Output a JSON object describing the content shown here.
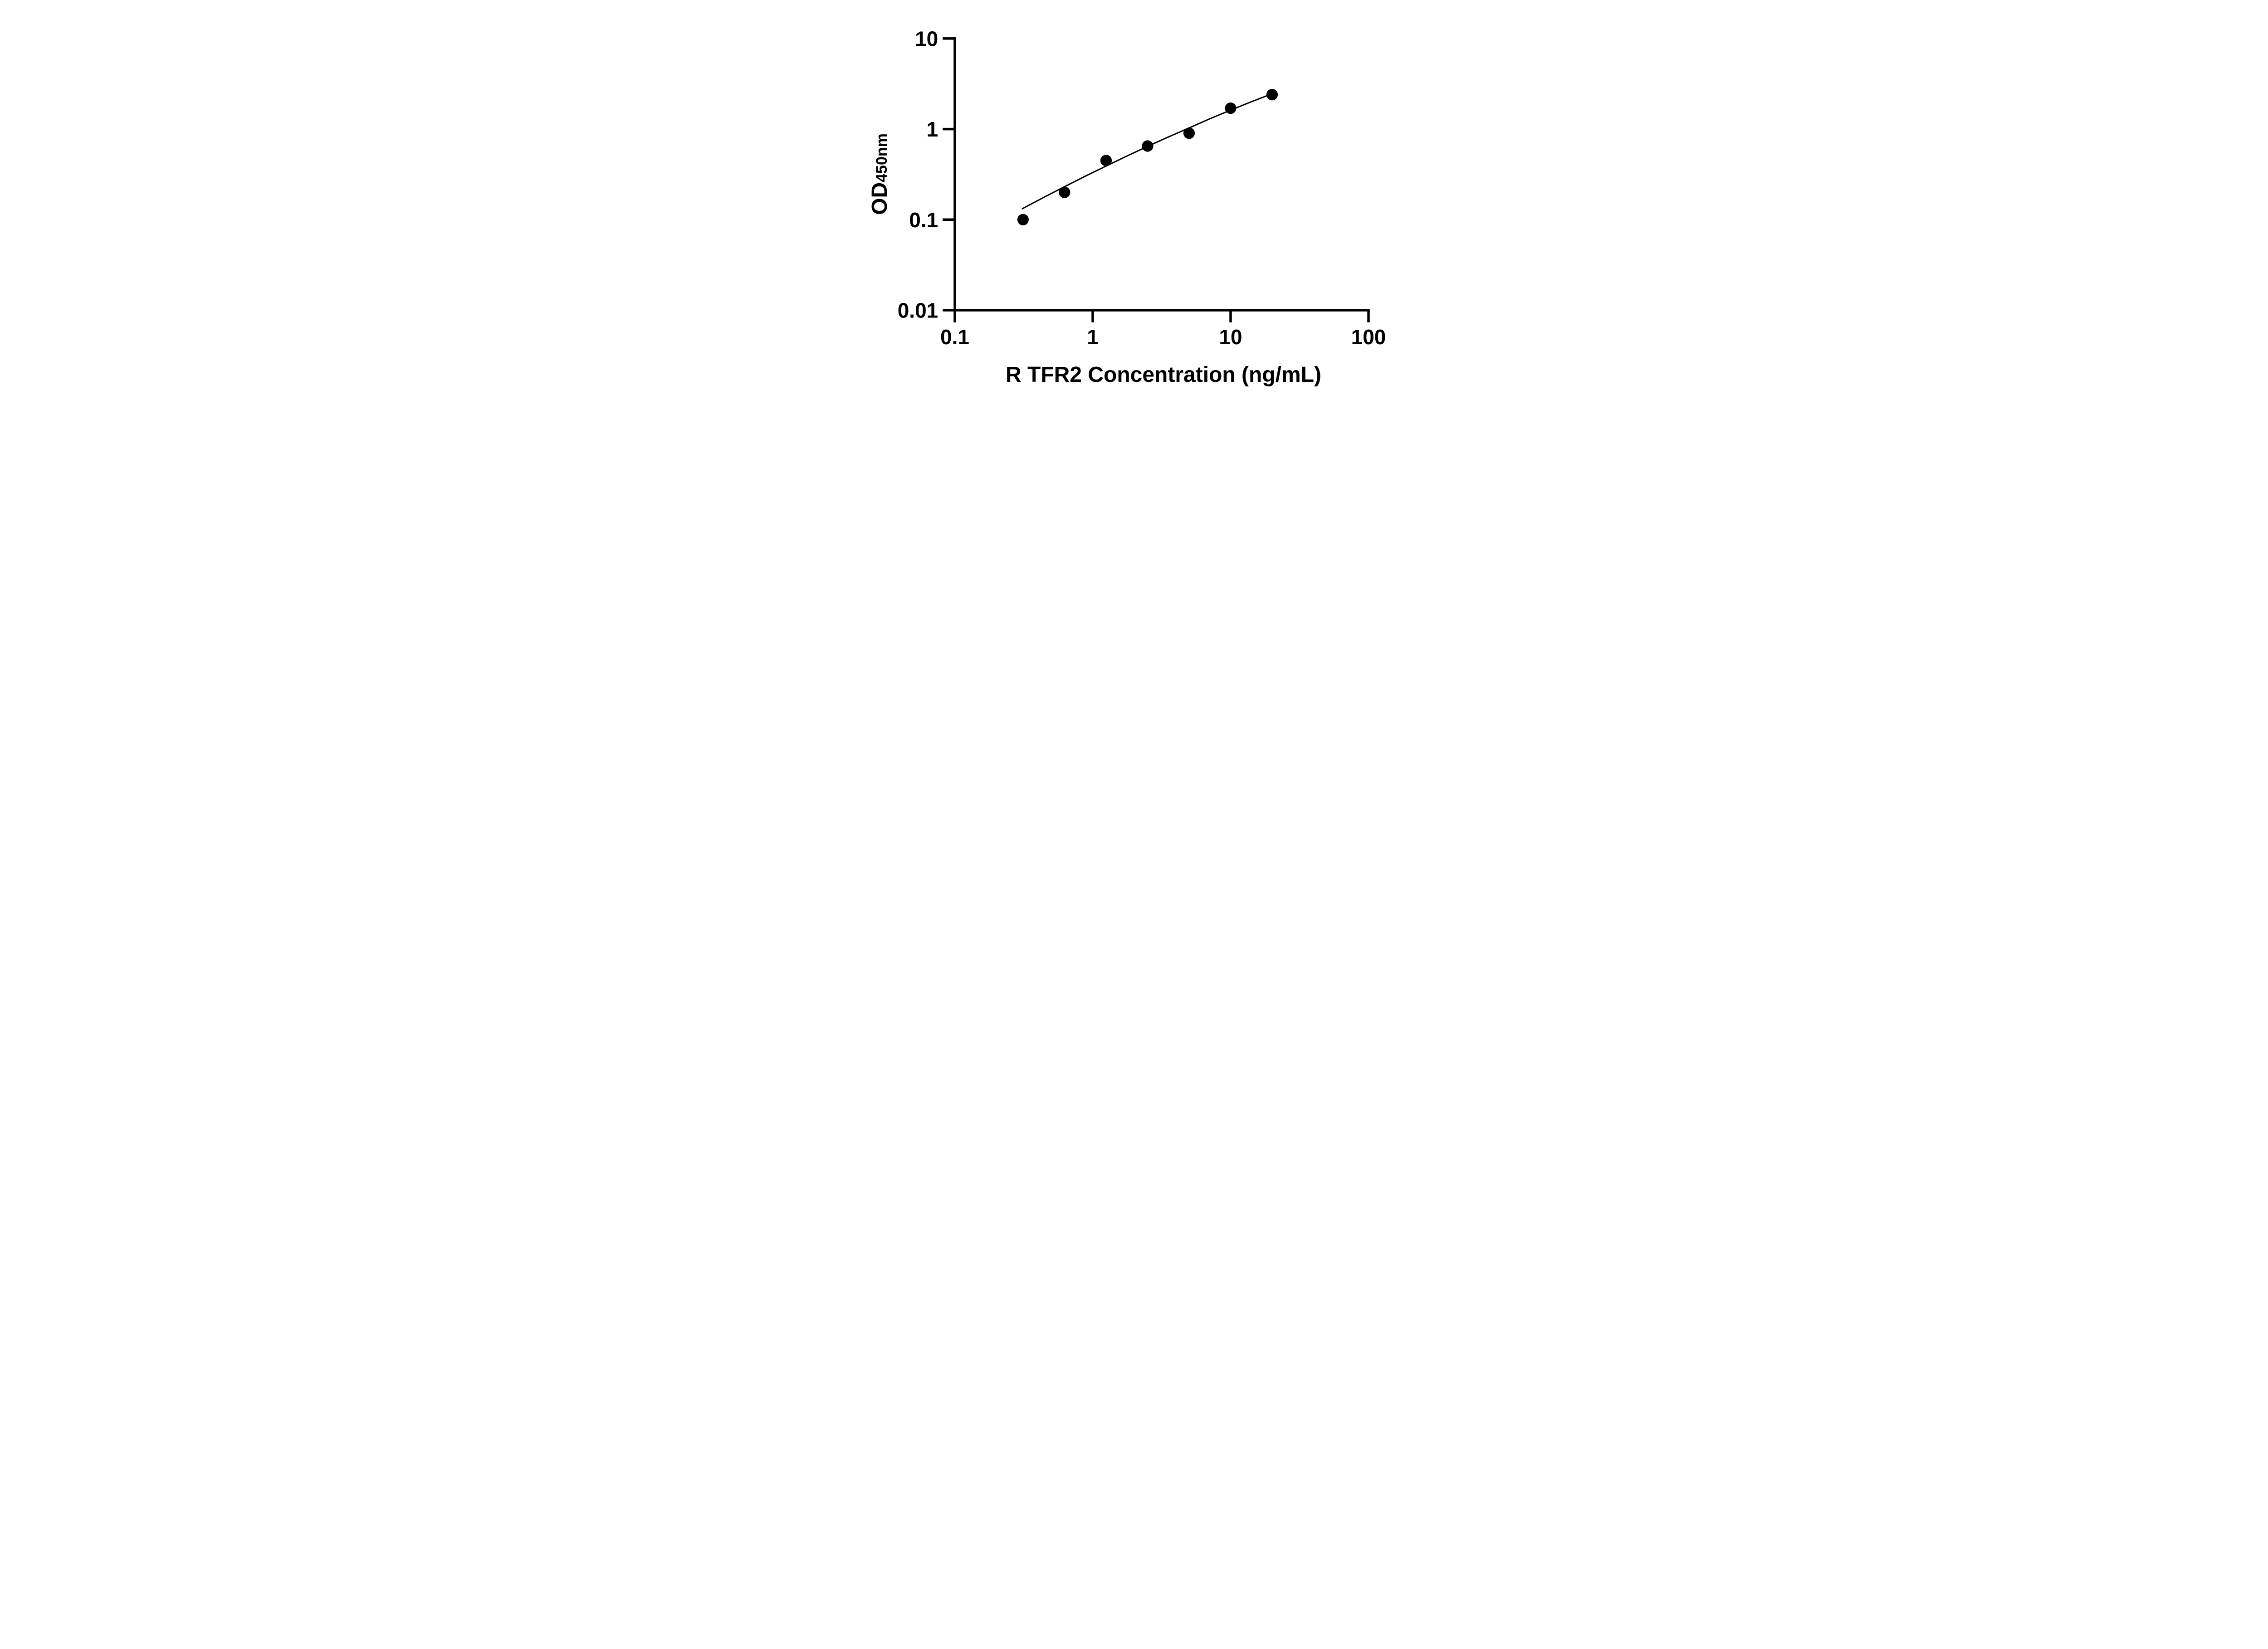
{
  "figure": {
    "background_color": "#ffffff",
    "ink_color": "#000000"
  },
  "chart_data": {
    "type": "scatter",
    "title": "",
    "xlabel": "R TFR2 Concentration (ng/mL)",
    "ylabel_main": "OD",
    "ylabel_sub": "450nm",
    "grid": false,
    "legend_position": "none",
    "x_axis": {
      "scale": "log10",
      "min": 0.1,
      "max": 100,
      "ticks": [
        0.1,
        1,
        10,
        100
      ],
      "tick_labels": [
        "0.1",
        "1",
        "10",
        "100"
      ]
    },
    "y_axis": {
      "scale": "log10",
      "min": 0.01,
      "max": 10,
      "ticks": [
        10,
        1,
        0.1,
        0.01
      ],
      "tick_labels": [
        "10",
        "1",
        "0.1",
        "0.01"
      ]
    },
    "series": [
      {
        "name": "standard curve data points",
        "marker": "filled-circle",
        "color": "#000000",
        "points": [
          [
            0.3125,
            0.1
          ],
          [
            0.625,
            0.2
          ],
          [
            1.25,
            0.45
          ],
          [
            2.5,
            0.65
          ],
          [
            5,
            0.9
          ],
          [
            10,
            1.7
          ],
          [
            20,
            2.4
          ]
        ]
      }
    ],
    "fit_curve": {
      "name": "fitted standard curve line",
      "color": "#000000",
      "points": [
        [
          0.309,
          0.132
        ],
        [
          0.447,
          0.178
        ],
        [
          0.631,
          0.233
        ],
        [
          0.891,
          0.304
        ],
        [
          1.26,
          0.393
        ],
        [
          1.78,
          0.506
        ],
        [
          2.51,
          0.646
        ],
        [
          3.55,
          0.82
        ],
        [
          5.01,
          1.03
        ],
        [
          7.08,
          1.3
        ],
        [
          10.0,
          1.62
        ],
        [
          14.1,
          2.0
        ],
        [
          20.9,
          2.52
        ]
      ]
    }
  }
}
